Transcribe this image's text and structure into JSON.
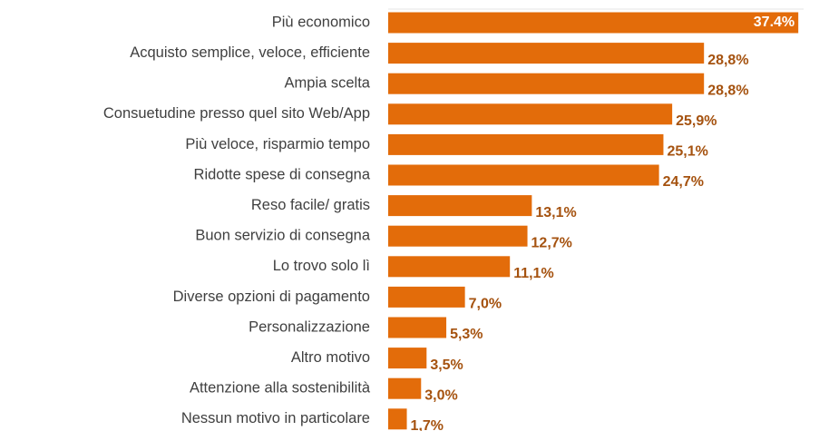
{
  "chart_data": {
    "type": "bar",
    "orientation": "horizontal",
    "categories": [
      "Più economico",
      "Acquisto semplice, veloce, efficiente",
      "Ampia scelta",
      "Consuetudine presso quel sito Web/App",
      "Più veloce, risparmio tempo",
      "Ridotte spese di consegna",
      "Reso facile/ gratis",
      "Buon servizio di consegna",
      "Lo trovo solo lì",
      "Diverse opzioni di pagamento",
      "Personalizzazione",
      "Altro motivo",
      "Attenzione alla sostenibilità",
      "Nessun motivo in particolare"
    ],
    "values": [
      37.4,
      28.8,
      28.8,
      25.9,
      25.1,
      24.7,
      13.1,
      12.7,
      11.1,
      7.0,
      5.3,
      3.5,
      3.0,
      1.7
    ],
    "value_labels": [
      "37.4%",
      "28,8%",
      "28,8%",
      "25,9%",
      "25,1%",
      "24,7%",
      "13,1%",
      "12,7%",
      "11,1%",
      "7,0%",
      "5,3%",
      "3,5%",
      "3,0%",
      "1,7%"
    ],
    "color": "#e36c0a",
    "xlim": [
      0,
      38
    ]
  }
}
